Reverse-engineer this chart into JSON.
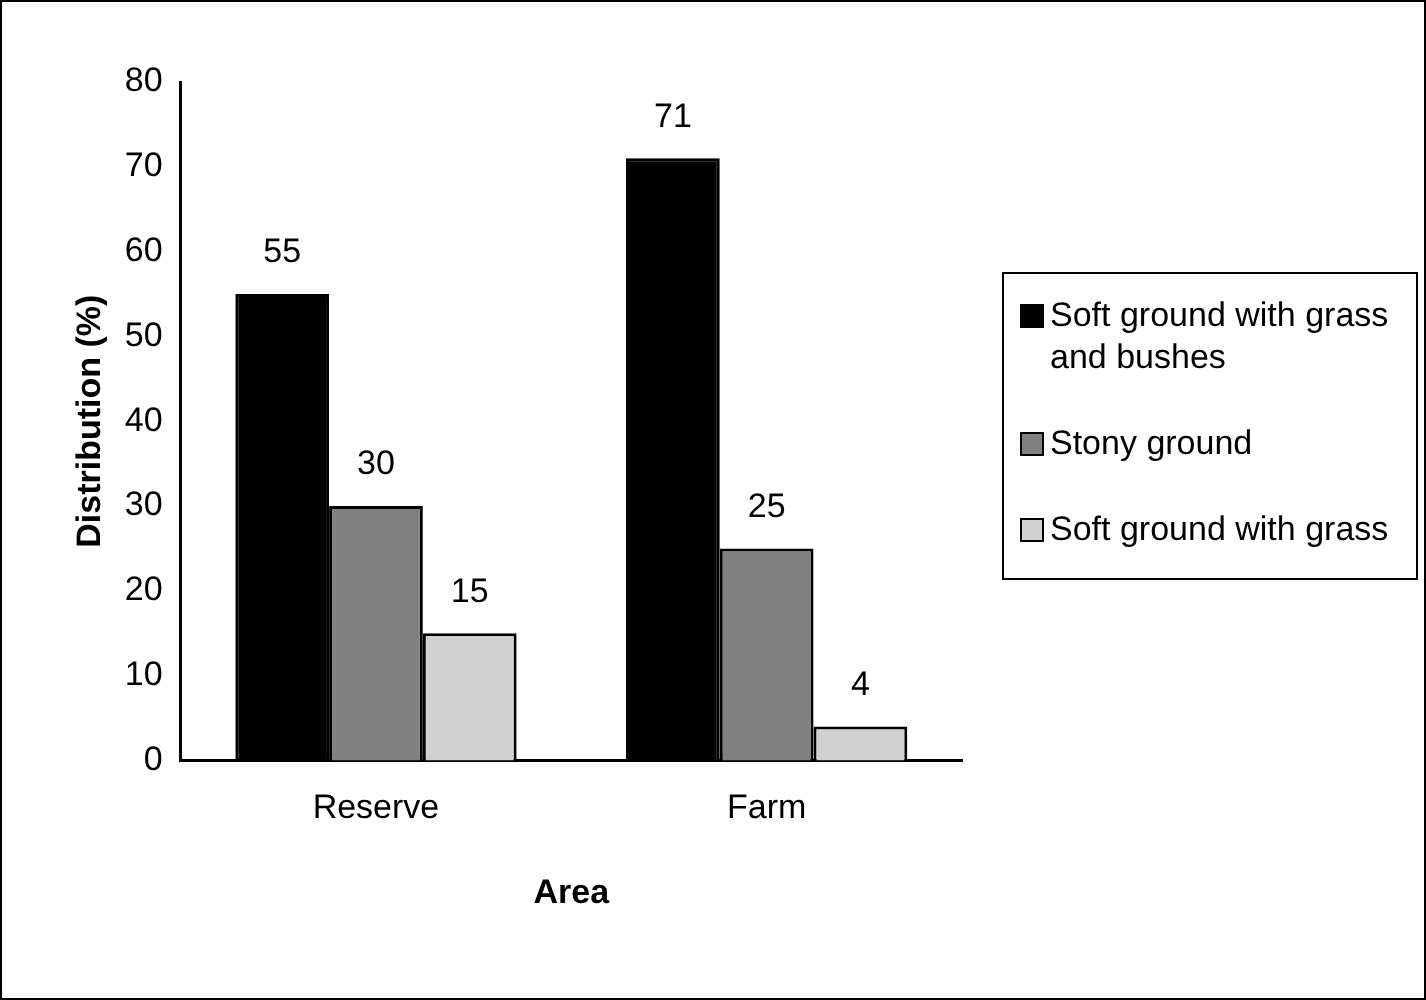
{
  "chart_data": {
    "type": "bar",
    "xlabel": "Area",
    "ylabel": "Distribution (%)",
    "categories": [
      "Reserve",
      "Farm"
    ],
    "series": [
      {
        "name": "Soft ground with grass and bushes",
        "color": "#000000",
        "values": [
          55,
          71
        ]
      },
      {
        "name": "Stony ground",
        "color": "#808080",
        "values": [
          30,
          25
        ]
      },
      {
        "name": "Soft ground with grass",
        "color": "#d0d0d0",
        "values": [
          15,
          4
        ]
      }
    ],
    "ylim": [
      0,
      80
    ],
    "yticks": [
      0,
      10,
      20,
      30,
      40,
      50,
      60,
      70,
      80
    ],
    "grid": false,
    "legend": "right",
    "data_labels": true
  }
}
